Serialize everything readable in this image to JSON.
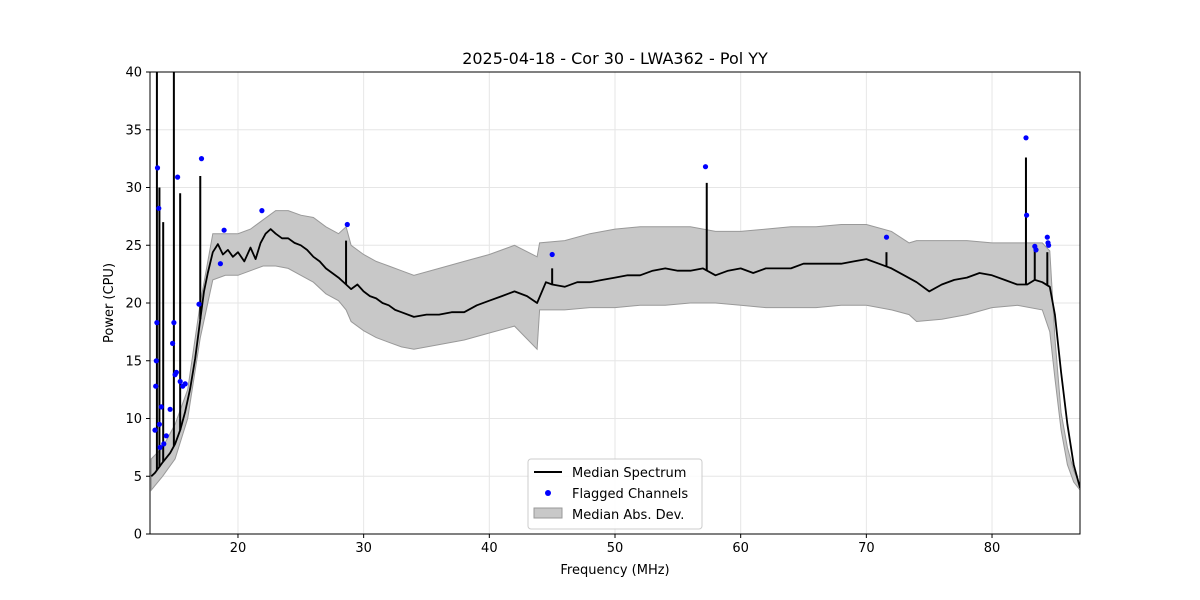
{
  "chart_data": {
    "type": "line",
    "title": "2025-04-18 - Cor 30 - LWA362 - Pol YY",
    "xlabel": "Frequency (MHz)",
    "ylabel": "Power (CPU)",
    "xlim": [
      13,
      87
    ],
    "ylim": [
      0,
      40
    ],
    "xticks": [
      20,
      30,
      40,
      50,
      60,
      70,
      80
    ],
    "yticks": [
      0,
      5,
      10,
      15,
      20,
      25,
      30,
      35,
      40
    ],
    "grid": true,
    "legend_position": "lower-center",
    "legend": [
      "Median Spectrum",
      "Flagged Channels",
      "Median Abs. Dev."
    ],
    "colors": {
      "median": "#000000",
      "flagged": "#0000ff",
      "mad_fill": "#c8c8c8",
      "mad_edge": "#999999"
    },
    "series": [
      {
        "name": "Median Spectrum",
        "x": [
          13.1,
          13.4,
          13.6,
          13.8,
          14.0,
          14.3,
          14.6,
          15.0,
          15.4,
          15.8,
          16.2,
          16.6,
          17.0,
          17.3,
          17.6,
          18.0,
          18.4,
          18.8,
          19.2,
          19.6,
          20.0,
          20.5,
          21.0,
          21.4,
          21.8,
          22.2,
          22.6,
          23.0,
          23.5,
          24.0,
          24.5,
          25.0,
          25.5,
          26.0,
          26.5,
          27.0,
          27.5,
          28.0,
          28.6,
          29.0,
          29.5,
          30.0,
          30.5,
          31.0,
          31.5,
          32.0,
          32.5,
          33.0,
          34.0,
          35.0,
          36.0,
          37.0,
          38.0,
          39.0,
          40.0,
          41.0,
          42.0,
          43.0,
          43.8,
          44.5,
          45.0,
          46.0,
          47.0,
          48.0,
          49.0,
          50.0,
          51.0,
          52.0,
          53.0,
          54.0,
          55.0,
          56.0,
          57.0,
          58.0,
          59.0,
          60.0,
          61.0,
          62.0,
          63.0,
          64.0,
          65.0,
          66.0,
          67.0,
          68.0,
          69.0,
          70.0,
          71.0,
          72.0,
          73.0,
          74.0,
          75.0,
          76.0,
          77.0,
          78.0,
          79.0,
          80.0,
          81.0,
          82.0,
          82.8,
          83.4,
          84.0,
          84.6,
          85.0,
          85.5,
          86.0,
          86.5,
          87.0
        ],
        "values": [
          5.0,
          5.3,
          5.6,
          5.9,
          6.2,
          6.6,
          7.0,
          7.8,
          9.0,
          10.6,
          12.6,
          15.2,
          18.6,
          21.0,
          22.6,
          24.4,
          25.1,
          24.2,
          24.6,
          24.0,
          24.4,
          23.6,
          24.8,
          23.8,
          25.2,
          26.0,
          26.4,
          26.0,
          25.6,
          25.6,
          25.2,
          25.0,
          24.6,
          24.0,
          23.6,
          23.0,
          22.6,
          22.2,
          21.6,
          21.2,
          21.6,
          21.0,
          20.6,
          20.4,
          20.0,
          19.8,
          19.4,
          19.2,
          18.8,
          19.0,
          19.0,
          19.2,
          19.2,
          19.8,
          20.2,
          20.6,
          21.0,
          20.6,
          20.0,
          21.8,
          21.6,
          21.4,
          21.8,
          21.8,
          22.0,
          22.2,
          22.4,
          22.4,
          22.8,
          23.0,
          22.8,
          22.8,
          23.0,
          22.4,
          22.8,
          23.0,
          22.6,
          23.0,
          23.0,
          23.0,
          23.4,
          23.4,
          23.4,
          23.4,
          23.6,
          23.8,
          23.4,
          23.0,
          22.4,
          21.8,
          21.0,
          21.6,
          22.0,
          22.2,
          22.6,
          22.4,
          22.0,
          21.6,
          21.6,
          22.0,
          21.8,
          21.4,
          19.0,
          14.0,
          9.5,
          6.0,
          4.0
        ],
        "spikes": [
          {
            "x": 13.55,
            "y": 40.0
          },
          {
            "x": 13.75,
            "y": 30.0
          },
          {
            "x": 14.05,
            "y": 27.0
          },
          {
            "x": 14.9,
            "y": 40.0
          },
          {
            "x": 15.4,
            "y": 29.5
          },
          {
            "x": 17.0,
            "y": 31.0
          },
          {
            "x": 28.6,
            "y": 25.4
          },
          {
            "x": 45.0,
            "y": 23.0
          },
          {
            "x": 57.3,
            "y": 30.4
          },
          {
            "x": 71.6,
            "y": 24.4
          },
          {
            "x": 82.7,
            "y": 32.6
          },
          {
            "x": 83.4,
            "y": 24.6
          },
          {
            "x": 84.4,
            "y": 24.4
          }
        ]
      },
      {
        "name": "Median Abs. Dev.",
        "x": [
          13.1,
          14.0,
          15.0,
          16.0,
          17.0,
          18.0,
          19.0,
          20.0,
          21.0,
          22.0,
          23.0,
          24.0,
          25.0,
          26.0,
          27.0,
          28.0,
          28.6,
          29.0,
          30.0,
          31.0,
          32.0,
          33.0,
          34.0,
          36.0,
          38.0,
          40.0,
          42.0,
          43.8,
          44.0,
          46.0,
          48.0,
          50.0,
          52.0,
          54.0,
          56.0,
          58.0,
          60.0,
          62.0,
          64.0,
          66.0,
          68.0,
          70.0,
          72.0,
          73.4,
          74.0,
          76.0,
          78.0,
          80.0,
          82.0,
          84.0,
          84.6,
          85.0,
          85.5,
          86.0,
          86.5,
          87.0
        ],
        "lower": [
          3.8,
          5.0,
          6.5,
          10.0,
          17.0,
          22.0,
          22.4,
          22.4,
          22.8,
          23.2,
          23.2,
          23.0,
          22.4,
          21.8,
          20.8,
          20.2,
          19.4,
          18.4,
          17.6,
          17.0,
          16.6,
          16.2,
          16.0,
          16.4,
          16.8,
          17.4,
          18.0,
          16.0,
          19.4,
          19.4,
          19.6,
          19.6,
          19.8,
          19.8,
          20.0,
          20.0,
          19.8,
          19.6,
          19.6,
          19.6,
          19.8,
          19.8,
          19.4,
          19.0,
          18.4,
          18.6,
          19.0,
          19.6,
          19.8,
          19.4,
          17.5,
          13.5,
          9.0,
          6.0,
          4.5,
          3.8
        ],
        "upper": [
          6.5,
          7.5,
          9.5,
          12.5,
          20.0,
          26.0,
          26.0,
          26.0,
          26.4,
          27.2,
          28.0,
          28.0,
          27.6,
          27.4,
          26.6,
          26.0,
          26.6,
          25.0,
          24.2,
          23.6,
          23.2,
          22.8,
          22.4,
          23.0,
          23.6,
          24.2,
          25.0,
          24.0,
          25.2,
          25.4,
          26.0,
          26.4,
          26.6,
          26.6,
          26.6,
          26.2,
          26.2,
          26.4,
          26.6,
          26.6,
          26.8,
          26.8,
          26.2,
          25.2,
          25.4,
          25.4,
          25.4,
          25.2,
          25.2,
          25.2,
          24.5,
          17.0,
          10.5,
          7.5,
          5.5,
          4.2
        ]
      },
      {
        "name": "Flagged Channels",
        "x": [
          13.4,
          13.45,
          13.5,
          13.55,
          13.6,
          13.7,
          13.75,
          13.8,
          13.9,
          14.1,
          14.3,
          14.6,
          14.8,
          14.9,
          15.0,
          15.1,
          15.2,
          15.4,
          15.6,
          15.8,
          16.9,
          17.1,
          18.6,
          18.9,
          21.9,
          28.7,
          45.0,
          57.2,
          71.6,
          82.7,
          82.75,
          83.4,
          83.5,
          84.4,
          84.45,
          84.5
        ],
        "values": [
          9.0,
          12.8,
          15.0,
          18.3,
          31.7,
          28.2,
          9.5,
          7.5,
          11.0,
          7.8,
          8.5,
          10.8,
          16.5,
          18.3,
          13.8,
          14.0,
          30.9,
          13.2,
          12.8,
          13.0,
          19.9,
          32.5,
          23.4,
          26.3,
          28.0,
          26.8,
          24.2,
          31.8,
          25.7,
          34.3,
          27.6,
          24.9,
          24.6,
          25.7,
          25.2,
          25.0
        ]
      }
    ]
  }
}
